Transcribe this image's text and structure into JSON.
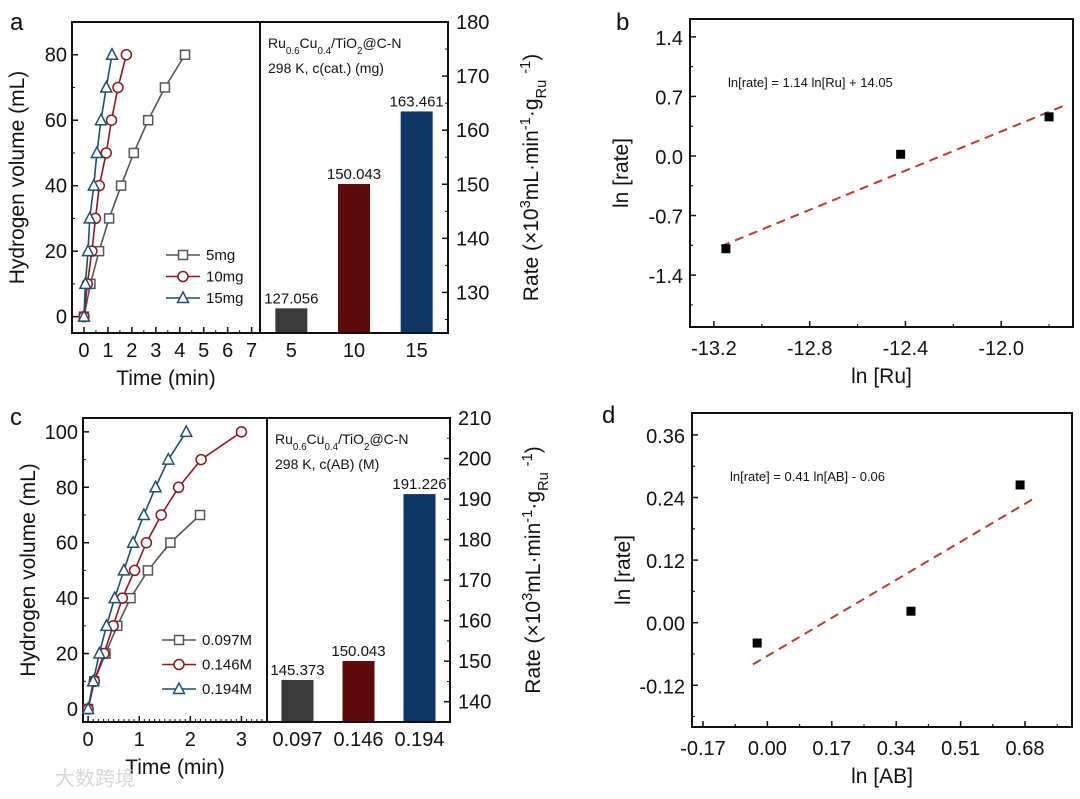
{
  "panel_labels": [
    "a",
    "b",
    "c",
    "d"
  ],
  "watermark": "大数跨境",
  "chart_data": [
    {
      "panel": "a-left",
      "type": "line",
      "xlabel": "Time (min)",
      "ylabel": "Hydrogen volume (mL)",
      "xlim": [
        -0.5,
        7.35
      ],
      "ylim": [
        -5,
        90
      ],
      "xticks": [
        0,
        1,
        2,
        3,
        4,
        5,
        6,
        7
      ],
      "yticks": [
        0,
        20,
        40,
        60,
        80
      ],
      "legend_position": "bottom-right",
      "series": [
        {
          "name": "5mg",
          "color": "#555555",
          "marker": "square",
          "x": [
            0,
            0.27,
            0.63,
            1.05,
            1.55,
            2.08,
            2.68,
            3.38,
            4.22
          ],
          "y": [
            0,
            10,
            20,
            30,
            40,
            50,
            60,
            70,
            80
          ]
        },
        {
          "name": "10mg",
          "color": "#8b1a1a",
          "marker": "circle",
          "x": [
            0,
            0.14,
            0.33,
            0.48,
            0.64,
            0.93,
            1.15,
            1.42,
            1.77
          ],
          "y": [
            0,
            10,
            20,
            30,
            40,
            50,
            60,
            70,
            80
          ]
        },
        {
          "name": "15mg",
          "color": "#1f4e6e",
          "marker": "triangle",
          "x": [
            0,
            0.06,
            0.17,
            0.24,
            0.41,
            0.54,
            0.71,
            0.93,
            1.17
          ],
          "y": [
            0,
            10,
            20,
            30,
            40,
            50,
            60,
            70,
            80
          ]
        }
      ]
    },
    {
      "panel": "a-right",
      "type": "bar",
      "categories": [
        "5",
        "10",
        "15"
      ],
      "values": [
        127.056,
        150.043,
        163.461
      ],
      "value_labels": [
        "127.056",
        "150.043",
        "163.461"
      ],
      "colors": [
        "#3a3a3a",
        "#5c0a0a",
        "#0e3563"
      ],
      "ylim": [
        122.5,
        180
      ],
      "yticks": [
        130,
        140,
        150,
        160,
        170,
        180
      ],
      "ylabel_parts": [
        [
          "Rate (×10",
          ""
        ],
        [
          "3",
          "sup"
        ],
        [
          "mL·min",
          ""
        ],
        [
          "-1",
          "sup"
        ],
        [
          "·g",
          ""
        ],
        [
          "Ru",
          "sub"
        ],
        [
          " ",
          ""
        ],
        [
          "-1",
          "sup"
        ],
        [
          ")",
          ""
        ]
      ],
      "annotation": [
        [
          [
            "Ru",
            ""
          ],
          [
            "0.6",
            "sub"
          ],
          [
            "Cu",
            ""
          ],
          [
            "0.4",
            "sub"
          ],
          [
            "/TiO",
            ""
          ],
          [
            "2",
            "sub"
          ],
          [
            "@C-N",
            ""
          ]
        ],
        [
          [
            "298 K, c(cat.) (mg)",
            ""
          ]
        ]
      ]
    },
    {
      "panel": "b",
      "type": "scatter",
      "xlabel": "ln [Ru]",
      "ylabel": "ln [rate]",
      "xlim": [
        -13.3,
        -11.7
      ],
      "ylim": [
        -2.01,
        1.61
      ],
      "xticks": [
        -13.2,
        -12.8,
        -12.4,
        -12.0
      ],
      "xtick_labels": [
        "-13.2",
        "-12.8",
        "-12.4",
        "-12.0"
      ],
      "yticks": [
        1.4,
        0.7,
        0.0,
        -0.7,
        -1.4
      ],
      "ytick_labels": [
        "1.4",
        "0.7",
        "0.0",
        "-0.7",
        "-1.4"
      ],
      "points": {
        "x": [
          -13.15,
          -12.42,
          -11.8
        ],
        "y": [
          -1.09,
          0.02,
          0.46
        ]
      },
      "fit": {
        "x": [
          -13.17,
          -11.73
        ],
        "y": [
          -1.06,
          0.6
        ],
        "color": "#c0392b",
        "equation": "ln[rate] = 1.14 ln[Ru] + 14.05"
      }
    },
    {
      "panel": "c-left",
      "type": "line",
      "xlabel": "Time (min)",
      "ylabel": "Hydrogen volume (mL)",
      "xlim": [
        -0.1,
        3.5
      ],
      "ylim": [
        -4.7,
        105
      ],
      "xticks": [
        0,
        1,
        2,
        3
      ],
      "yticks": [
        0,
        20,
        40,
        60,
        80,
        100
      ],
      "legend_position": "bottom-right",
      "series": [
        {
          "name": "0.097M",
          "color": "#555555",
          "marker": "square",
          "x": [
            0,
            0.12,
            0.34,
            0.57,
            0.83,
            1.17,
            1.61,
            2.19
          ],
          "y": [
            0,
            10,
            20,
            30,
            40,
            50,
            60,
            70
          ]
        },
        {
          "name": "0.146M",
          "color": "#8b1a1a",
          "marker": "circle",
          "x": [
            0,
            0.12,
            0.31,
            0.49,
            0.67,
            0.91,
            1.14,
            1.43,
            1.77,
            2.21,
            3.0
          ],
          "y": [
            0,
            10,
            20,
            30,
            40,
            50,
            60,
            70,
            80,
            90,
            100
          ]
        },
        {
          "name": "0.194M",
          "color": "#1f4e6e",
          "marker": "triangle",
          "x": [
            0,
            0.1,
            0.22,
            0.36,
            0.52,
            0.7,
            0.88,
            1.09,
            1.32,
            1.57,
            1.92
          ],
          "y": [
            0,
            10,
            20,
            30,
            40,
            50,
            60,
            70,
            80,
            90,
            100
          ]
        }
      ]
    },
    {
      "panel": "c-right",
      "type": "bar",
      "categories": [
        "0.097",
        "0.146",
        "0.194"
      ],
      "values": [
        145.373,
        150.043,
        191.226
      ],
      "value_labels": [
        "145.373",
        "150.043",
        "191.226"
      ],
      "colors": [
        "#3a3a3a",
        "#5c0a0a",
        "#0e3563"
      ],
      "ylim": [
        135,
        210
      ],
      "yticks": [
        140,
        150,
        160,
        170,
        180,
        190,
        200,
        210
      ],
      "ylabel_parts": [
        [
          "Rate (×10",
          ""
        ],
        [
          "3",
          "sup"
        ],
        [
          "mL·min",
          ""
        ],
        [
          "-1",
          "sup"
        ],
        [
          "·g",
          ""
        ],
        [
          "Ru",
          "sub"
        ],
        [
          " ",
          ""
        ],
        [
          "-1",
          "sup"
        ],
        [
          ")",
          ""
        ]
      ],
      "annotation": [
        [
          [
            "Ru",
            ""
          ],
          [
            "0.6",
            "sub"
          ],
          [
            "Cu",
            ""
          ],
          [
            "0.4",
            "sub"
          ],
          [
            "/TiO",
            ""
          ],
          [
            "2",
            "sub"
          ],
          [
            "@C-N",
            ""
          ]
        ],
        [
          [
            "298 K, c(AB) (M)",
            ""
          ]
        ]
      ]
    },
    {
      "panel": "d",
      "type": "scatter",
      "xlabel": "ln [AB]",
      "ylabel": "ln [rate]",
      "xlim": [
        -0.199,
        0.804
      ],
      "ylim": [
        -0.2,
        0.402
      ],
      "xticks": [
        -0.17,
        0.0,
        0.17,
        0.34,
        0.51,
        0.68
      ],
      "xtick_labels": [
        "-0.17",
        "0.00",
        "0.17",
        "0.34",
        "0.51",
        "0.68"
      ],
      "yticks": [
        0.36,
        0.24,
        0.12,
        0.0,
        -0.12
      ],
      "ytick_labels": [
        "0.36",
        "0.24",
        "0.12",
        "0.00",
        "-0.12"
      ],
      "points": {
        "x": [
          -0.027,
          0.379,
          0.667
        ],
        "y": [
          -0.039,
          0.022,
          0.264
        ]
      },
      "fit": {
        "x": [
          -0.038,
          0.701
        ],
        "y": [
          -0.08,
          0.237
        ],
        "color": "#c0392b",
        "equation": "ln[rate] = 0.41 ln[AB] - 0.06"
      }
    }
  ]
}
